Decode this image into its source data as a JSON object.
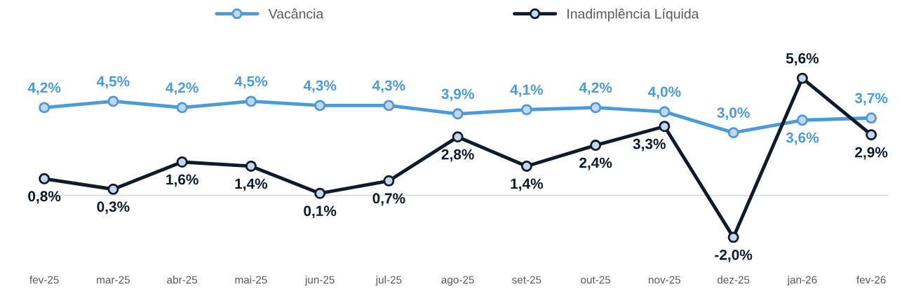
{
  "chart_data": {
    "type": "line",
    "categories": [
      "fev-25",
      "mar-25",
      "abr-25",
      "mai-25",
      "jun-25",
      "jul-25",
      "ago-25",
      "set-25",
      "out-25",
      "nov-25",
      "dez-25",
      "jan-26",
      "fev-26"
    ],
    "series": [
      {
        "name": "Vacância",
        "color": "#4a9bd9",
        "values": [
          4.2,
          4.5,
          4.2,
          4.5,
          4.3,
          4.3,
          3.9,
          4.1,
          4.2,
          4.0,
          3.0,
          3.6,
          3.7
        ],
        "value_labels": [
          "4,2%",
          "4,5%",
          "4,2%",
          "4,5%",
          "4,3%",
          "4,3%",
          "3,9%",
          "4,1%",
          "4,2%",
          "4,0%",
          "3,0%",
          "3,6%",
          "3,7%"
        ]
      },
      {
        "name": "Inadimplência Líquida",
        "color": "#0d1b2a",
        "values": [
          0.8,
          0.3,
          1.6,
          1.4,
          0.1,
          0.7,
          2.8,
          1.4,
          2.4,
          3.3,
          -2.0,
          5.6,
          2.9
        ],
        "value_labels": [
          "0,8%",
          "0,3%",
          "1,6%",
          "1,4%",
          "0,1%",
          "0,7%",
          "2,8%",
          "1,4%",
          "2,4%",
          "3,3%",
          "-2,0%",
          "5,6%",
          "2,9%"
        ]
      }
    ],
    "ref_lines": [
      {
        "axis": "y",
        "value": 0,
        "color": "#d9d9d9"
      }
    ],
    "legend": "top",
    "grid": false,
    "marker": "circle",
    "line_style": "solid"
  }
}
